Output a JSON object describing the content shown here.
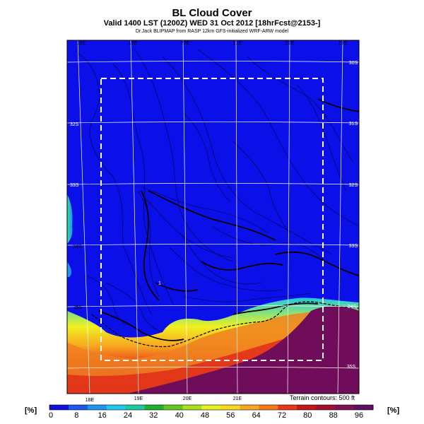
{
  "header": {
    "title": "BL Cloud Cover",
    "subtitle": "Valid 1400 LST (1200Z) WED 31 Oct 2012 [18hrFcst@2153-]",
    "credit": "Dr.Jack BLIPMAP from RASP 12km GFS-initialized WRF-ARW model"
  },
  "map": {
    "lon_labels_top": [
      "18E",
      "19E",
      "20E",
      "21E",
      "22E",
      "23E"
    ],
    "lon_labels_bottom": [
      "18E",
      "19E",
      "20E",
      "21E"
    ],
    "lat_labels_left": [
      "32S",
      "33S",
      "34S",
      "35S"
    ],
    "lat_labels_right": [
      "30S",
      "31S",
      "32S",
      "33S",
      "34S",
      "35S"
    ],
    "terrain_note": "Terrain contours: 500 ft",
    "marker_label": "1"
  },
  "colorbar": {
    "unit_left": "[%]",
    "unit_right": "[%]",
    "ticks": [
      0,
      8,
      16,
      24,
      32,
      40,
      48,
      56,
      64,
      72,
      80,
      88,
      96
    ],
    "colors": [
      "#1010d8",
      "#1e5ae8",
      "#1e96f0",
      "#1ec8f0",
      "#20c8a0",
      "#20b030",
      "#60c820",
      "#a8e020",
      "#e8f020",
      "#f8d820",
      "#f8a820",
      "#f87818",
      "#e83818",
      "#c01818",
      "#a01030",
      "#801050",
      "#601060"
    ]
  }
}
